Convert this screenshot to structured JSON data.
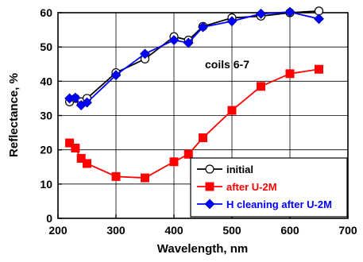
{
  "chart_data": {
    "type": "line",
    "xlabel": "Wavelength, nm",
    "ylabel": "Reflectance, %",
    "xlim": [
      200,
      700
    ],
    "ylim": [
      0,
      60
    ],
    "x_ticks": [
      200,
      300,
      400,
      500,
      600,
      700
    ],
    "y_ticks": [
      0,
      10,
      20,
      30,
      40,
      50,
      60
    ],
    "grid": true,
    "annotation": "coils 6-7",
    "legend_position": "bottom-right",
    "series": [
      {
        "name": "initial",
        "color": "#000000",
        "marker": "open-circle",
        "x": [
          220,
          230,
          240,
          250,
          300,
          350,
          400,
          425,
          450,
          500,
          550,
          600,
          650
        ],
        "y": [
          34,
          35,
          34,
          35,
          42.5,
          46.5,
          53,
          52,
          56,
          58.5,
          59,
          60,
          60.5
        ]
      },
      {
        "name": "after U-2M",
        "color": "#ff0000",
        "marker": "square",
        "x": [
          220,
          230,
          240,
          250,
          300,
          350,
          400,
          425,
          450,
          500,
          550,
          600,
          650
        ],
        "y": [
          22,
          20.5,
          17.5,
          16,
          12.2,
          11.8,
          16.5,
          18.7,
          23.5,
          31.5,
          38.5,
          42.2,
          43.5
        ]
      },
      {
        "name": "H cleaning after U-2M",
        "color": "#0000ff",
        "marker": "diamond",
        "x": [
          220,
          230,
          240,
          250,
          300,
          350,
          400,
          425,
          450,
          500,
          550,
          600,
          650
        ],
        "y": [
          35,
          35.2,
          33,
          33.8,
          41.8,
          48,
          52,
          51.2,
          55.8,
          57.5,
          59.7,
          60.2,
          58.2
        ]
      }
    ]
  }
}
